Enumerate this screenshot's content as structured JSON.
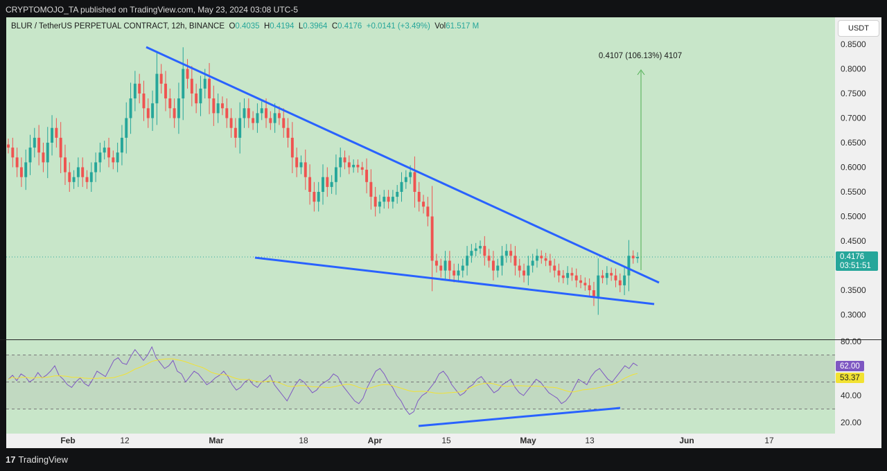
{
  "header": {
    "published_by": "CRYPTOMOJO_TA published on TradingView.com, May 23, 2024 03:08 UTC-5"
  },
  "symbol": {
    "name": "BLUR / TetherUS PERPETUAL CONTRACT, 12h, BINANCE",
    "o_label": "O",
    "o_value": "0.4035",
    "h_label": "H",
    "h_value": "0.4194",
    "l_label": "L",
    "l_value": "0.3964",
    "c_label": "C",
    "c_value": "0.4176",
    "change": "+0.0141 (+3.49%)",
    "vol_label": "Vol",
    "vol_value": "61.517 M"
  },
  "currency_button": "USDT",
  "price_badge": {
    "price": "0.4176",
    "countdown": "03:51:51",
    "color": "#26a69a"
  },
  "rsi_badges": {
    "rsi": "62.00",
    "rsi_color": "#7e57c2",
    "ma": "53.37",
    "ma_color": "#f2e232"
  },
  "target_annotation": "0.4107 (106.13%) 4107",
  "footer": {
    "logo_text": "TradingView"
  },
  "colors": {
    "up": "#26a69a",
    "down": "#ef5350",
    "trendline": "#2962ff",
    "target_arrow": "#4caf50",
    "rsi_line": "#7e57c2",
    "rsi_ma": "#f2e232"
  },
  "chart_data": [
    {
      "type": "candlestick",
      "title": "BLUR / TetherUS PERPETUAL CONTRACT, 12h, BINANCE",
      "y_axis_ticks": [
        "0.8500",
        "0.8000",
        "0.7500",
        "0.7000",
        "0.6500",
        "0.6000",
        "0.5500",
        "0.5000",
        "0.4500",
        "0.3500",
        "0.3000"
      ],
      "x_axis_ticks": [
        "Feb",
        "12",
        "Mar",
        "18",
        "Apr",
        "15",
        "May",
        "13",
        "Jun",
        "17"
      ],
      "ylim": [
        0.275,
        0.875
      ],
      "closes_approx": [
        0.64,
        0.62,
        0.6,
        0.58,
        0.61,
        0.64,
        0.66,
        0.63,
        0.61,
        0.65,
        0.68,
        0.66,
        0.62,
        0.59,
        0.57,
        0.58,
        0.6,
        0.58,
        0.57,
        0.59,
        0.61,
        0.63,
        0.64,
        0.62,
        0.61,
        0.63,
        0.66,
        0.7,
        0.74,
        0.77,
        0.75,
        0.72,
        0.7,
        0.73,
        0.79,
        0.77,
        0.74,
        0.72,
        0.7,
        0.74,
        0.8,
        0.78,
        0.75,
        0.73,
        0.76,
        0.78,
        0.74,
        0.71,
        0.73,
        0.72,
        0.7,
        0.68,
        0.66,
        0.7,
        0.72,
        0.7,
        0.69,
        0.71,
        0.72,
        0.7,
        0.69,
        0.71,
        0.7,
        0.68,
        0.66,
        0.62,
        0.6,
        0.61,
        0.58,
        0.55,
        0.53,
        0.55,
        0.58,
        0.56,
        0.57,
        0.6,
        0.62,
        0.61,
        0.6,
        0.605,
        0.6,
        0.595,
        0.57,
        0.54,
        0.52,
        0.53,
        0.54,
        0.53,
        0.54,
        0.55,
        0.57,
        0.58,
        0.59,
        0.55,
        0.53,
        0.52,
        0.5,
        0.41,
        0.4,
        0.39,
        0.41,
        0.39,
        0.38,
        0.39,
        0.4,
        0.42,
        0.43,
        0.435,
        0.44,
        0.42,
        0.41,
        0.39,
        0.4,
        0.42,
        0.43,
        0.42,
        0.4,
        0.39,
        0.38,
        0.4,
        0.41,
        0.42,
        0.415,
        0.41,
        0.4,
        0.39,
        0.38,
        0.375,
        0.385,
        0.38,
        0.37,
        0.365,
        0.36,
        0.35,
        0.335,
        0.38,
        0.375,
        0.385,
        0.38,
        0.37,
        0.36,
        0.38,
        0.42,
        0.415,
        0.4176
      ],
      "trendlines": [
        {
          "from_date": "Jan 30",
          "from_price": 0.845,
          "to_date": "May 21",
          "to_price": 0.365
        },
        {
          "from_date": "Mar 4",
          "from_price": 0.42,
          "to_date": "May 21",
          "to_price": 0.321
        }
      ],
      "target": {
        "label": "0.4107 (106.13%) 4107",
        "from_price": 0.388,
        "to_price": 0.8
      }
    },
    {
      "type": "line",
      "title": "RSI",
      "y_axis_ticks": [
        "80.00",
        "40.00",
        "20.00"
      ],
      "ylim": [
        20,
        80
      ],
      "bands": [
        70,
        50,
        30
      ],
      "rsi_last": 62.0,
      "ma_last": 53.37,
      "rsi_approx": [
        52,
        55,
        51,
        56,
        54,
        50,
        52,
        57,
        53,
        55,
        58,
        62,
        55,
        52,
        48,
        46,
        50,
        53,
        49,
        47,
        52,
        58,
        56,
        54,
        60,
        66,
        68,
        64,
        63,
        69,
        74,
        70,
        66,
        70,
        76,
        68,
        64,
        60,
        62,
        66,
        58,
        56,
        50,
        54,
        58,
        56,
        52,
        48,
        50,
        53,
        55,
        58,
        54,
        48,
        44,
        46,
        50,
        52,
        48,
        46,
        50,
        52,
        55,
        48,
        44,
        40,
        36,
        42,
        48,
        52,
        50,
        46,
        42,
        44,
        48,
        50,
        52,
        56,
        54,
        48,
        44,
        40,
        36,
        34,
        38,
        46,
        52,
        58,
        60,
        56,
        50,
        46,
        40,
        36,
        30,
        26,
        28,
        36,
        40,
        42,
        46,
        50,
        56,
        58,
        54,
        48,
        44,
        40,
        42,
        46,
        48,
        52,
        54,
        50,
        46,
        42,
        44,
        48,
        50,
        52,
        46,
        42,
        40,
        44,
        48,
        52,
        50,
        46,
        42,
        40,
        38,
        34,
        36,
        40,
        46,
        52,
        50,
        48,
        54,
        58,
        60,
        56,
        52,
        50,
        54,
        58,
        62,
        60,
        64,
        62
      ]
    }
  ]
}
